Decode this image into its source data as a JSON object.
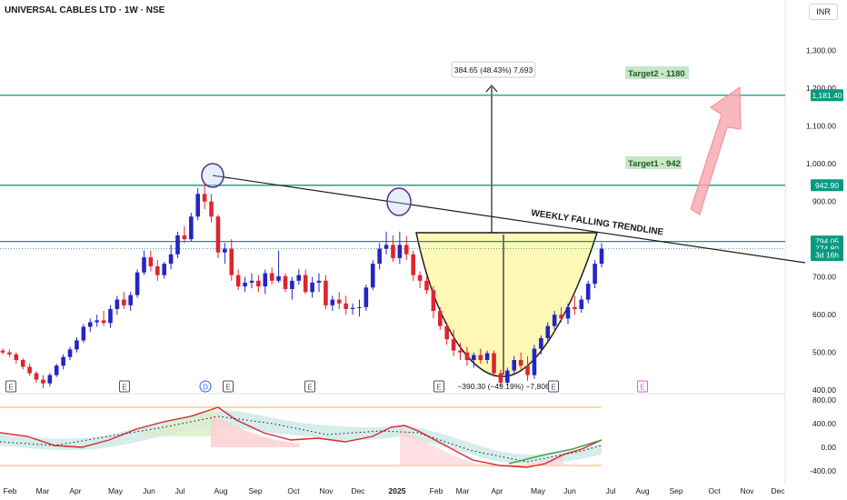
{
  "header": {
    "symbol_title": "UNIVERSAL CABLES LTD · 1W · NSE",
    "currency": "INR"
  },
  "colors": {
    "up": "#2424c8",
    "down": "#e0242f",
    "level_line": "#089981",
    "trendline": "#1e1e1e",
    "cup_fill": "#fff59d",
    "arrow": "#f6a6ac"
  },
  "annotations": {
    "target1": "Target1 - 942",
    "target2": "Target2 - 1180",
    "trendline_label": "WEEKLY FALLING TRENDLINE",
    "measure_up": "384.65 (48.43%) 7,693",
    "measure_down": "−390.30 (−49.19%) −7,806"
  },
  "price_axis": {
    "ticks": [
      "1,300.00",
      "1,200.00",
      "1,100.00",
      "1,000.00",
      "900.00",
      "700.00",
      "600.00",
      "500.00",
      "400.00"
    ],
    "tags": [
      {
        "label": "1,181.40",
        "value": 1181.4
      },
      {
        "label": "942.90",
        "value": 942.9
      },
      {
        "label": "794.05",
        "value": 794.05
      },
      {
        "label": "774.80",
        "value": 774.8
      },
      {
        "label": "3d 16h",
        "value": 758
      }
    ]
  },
  "indicator_axis": {
    "ticks": [
      "800.00",
      "400.00",
      "0.00",
      "-400.00"
    ]
  },
  "time_axis": {
    "labels": [
      "Feb",
      "Mar",
      "Apr",
      "May",
      "Jun",
      "Jul",
      "Aug",
      "Sep",
      "Oct",
      "Nov",
      "Dec",
      "2025",
      "Feb",
      "Mar",
      "Apr",
      "May",
      "Jun",
      "Jul",
      "Aug",
      "Sep",
      "Oct",
      "Nov",
      "Dec"
    ]
  },
  "event_markers": [
    "E",
    "E",
    "D",
    "E",
    "E",
    "E",
    "E",
    "E"
  ],
  "chart_data": {
    "type": "candlestick",
    "title": "UNIVERSAL CABLES LTD · 1W · NSE",
    "ylim": [
      380,
      1340
    ],
    "y_scale": "linear",
    "grid": false,
    "levels": [
      {
        "label": "Target2 - 1180",
        "value": 1181.4
      },
      {
        "label": "Target1 - 942",
        "value": 942.9
      },
      {
        "label": "",
        "value": 794.05
      }
    ],
    "current_price": 774.8,
    "ohlc": [
      [
        505,
        510,
        495,
        500
      ],
      [
        500,
        508,
        488,
        495
      ],
      [
        495,
        500,
        470,
        480
      ],
      [
        480,
        485,
        455,
        462
      ],
      [
        462,
        470,
        438,
        445
      ],
      [
        445,
        450,
        420,
        428
      ],
      [
        428,
        440,
        405,
        418
      ],
      [
        418,
        445,
        410,
        440
      ],
      [
        440,
        470,
        435,
        465
      ],
      [
        465,
        495,
        455,
        488
      ],
      [
        488,
        515,
        480,
        508
      ],
      [
        508,
        540,
        500,
        532
      ],
      [
        532,
        575,
        525,
        568
      ],
      [
        568,
        590,
        555,
        580
      ],
      [
        580,
        600,
        568,
        585
      ],
      [
        585,
        610,
        570,
        578
      ],
      [
        578,
        625,
        565,
        615
      ],
      [
        615,
        650,
        600,
        640
      ],
      [
        640,
        660,
        615,
        625
      ],
      [
        625,
        660,
        610,
        652
      ],
      [
        652,
        720,
        645,
        712
      ],
      [
        712,
        770,
        705,
        752
      ],
      [
        752,
        770,
        715,
        728
      ],
      [
        728,
        745,
        690,
        705
      ],
      [
        705,
        740,
        695,
        735
      ],
      [
        735,
        785,
        720,
        760
      ],
      [
        760,
        820,
        750,
        810
      ],
      [
        810,
        835,
        790,
        800
      ],
      [
        800,
        870,
        795,
        860
      ],
      [
        860,
        935,
        850,
        920
      ],
      [
        920,
        945,
        880,
        900
      ],
      [
        900,
        920,
        845,
        860
      ],
      [
        860,
        865,
        750,
        765
      ],
      [
        765,
        790,
        735,
        775
      ],
      [
        775,
        800,
        690,
        705
      ],
      [
        705,
        720,
        665,
        675
      ],
      [
        675,
        700,
        660,
        685
      ],
      [
        685,
        710,
        670,
        690
      ],
      [
        690,
        705,
        660,
        675
      ],
      [
        675,
        720,
        655,
        710
      ],
      [
        710,
        725,
        680,
        690
      ],
      [
        690,
        770,
        685,
        702
      ],
      [
        702,
        710,
        660,
        668
      ],
      [
        668,
        700,
        640,
        690
      ],
      [
        690,
        720,
        680,
        705
      ],
      [
        705,
        720,
        655,
        660
      ],
      [
        660,
        700,
        645,
        685
      ],
      [
        685,
        710,
        660,
        690
      ],
      [
        690,
        705,
        615,
        625
      ],
      [
        625,
        650,
        610,
        640
      ],
      [
        640,
        660,
        615,
        630
      ],
      [
        630,
        650,
        600,
        615
      ],
      [
        615,
        630,
        600,
        618
      ],
      [
        618,
        640,
        595,
        620
      ],
      [
        620,
        680,
        610,
        672
      ],
      [
        672,
        745,
        665,
        735
      ],
      [
        735,
        790,
        720,
        775
      ],
      [
        775,
        820,
        760,
        785
      ],
      [
        785,
        810,
        740,
        750
      ],
      [
        750,
        820,
        735,
        785
      ],
      [
        785,
        808,
        745,
        760
      ],
      [
        760,
        770,
        690,
        705
      ],
      [
        705,
        715,
        670,
        690
      ],
      [
        690,
        700,
        655,
        665
      ],
      [
        665,
        675,
        590,
        610
      ],
      [
        610,
        620,
        560,
        570
      ],
      [
        570,
        580,
        520,
        535
      ],
      [
        535,
        560,
        490,
        505
      ],
      [
        505,
        525,
        480,
        500
      ],
      [
        500,
        515,
        465,
        480
      ],
      [
        480,
        500,
        460,
        493
      ],
      [
        493,
        510,
        470,
        480
      ],
      [
        480,
        505,
        470,
        498
      ],
      [
        498,
        505,
        435,
        445
      ],
      [
        445,
        455,
        410,
        420
      ],
      [
        420,
        460,
        412,
        452
      ],
      [
        452,
        490,
        440,
        480
      ],
      [
        480,
        500,
        455,
        465
      ],
      [
        465,
        490,
        425,
        440
      ],
      [
        440,
        520,
        430,
        510
      ],
      [
        510,
        545,
        495,
        538
      ],
      [
        538,
        580,
        525,
        570
      ],
      [
        570,
        610,
        560,
        600
      ],
      [
        600,
        620,
        580,
        590
      ],
      [
        590,
        630,
        575,
        620
      ],
      [
        620,
        650,
        600,
        615
      ],
      [
        615,
        650,
        605,
        640
      ],
      [
        640,
        690,
        630,
        682
      ],
      [
        682,
        745,
        670,
        735
      ],
      [
        735,
        790,
        725,
        775
      ]
    ]
  },
  "legend": {}
}
